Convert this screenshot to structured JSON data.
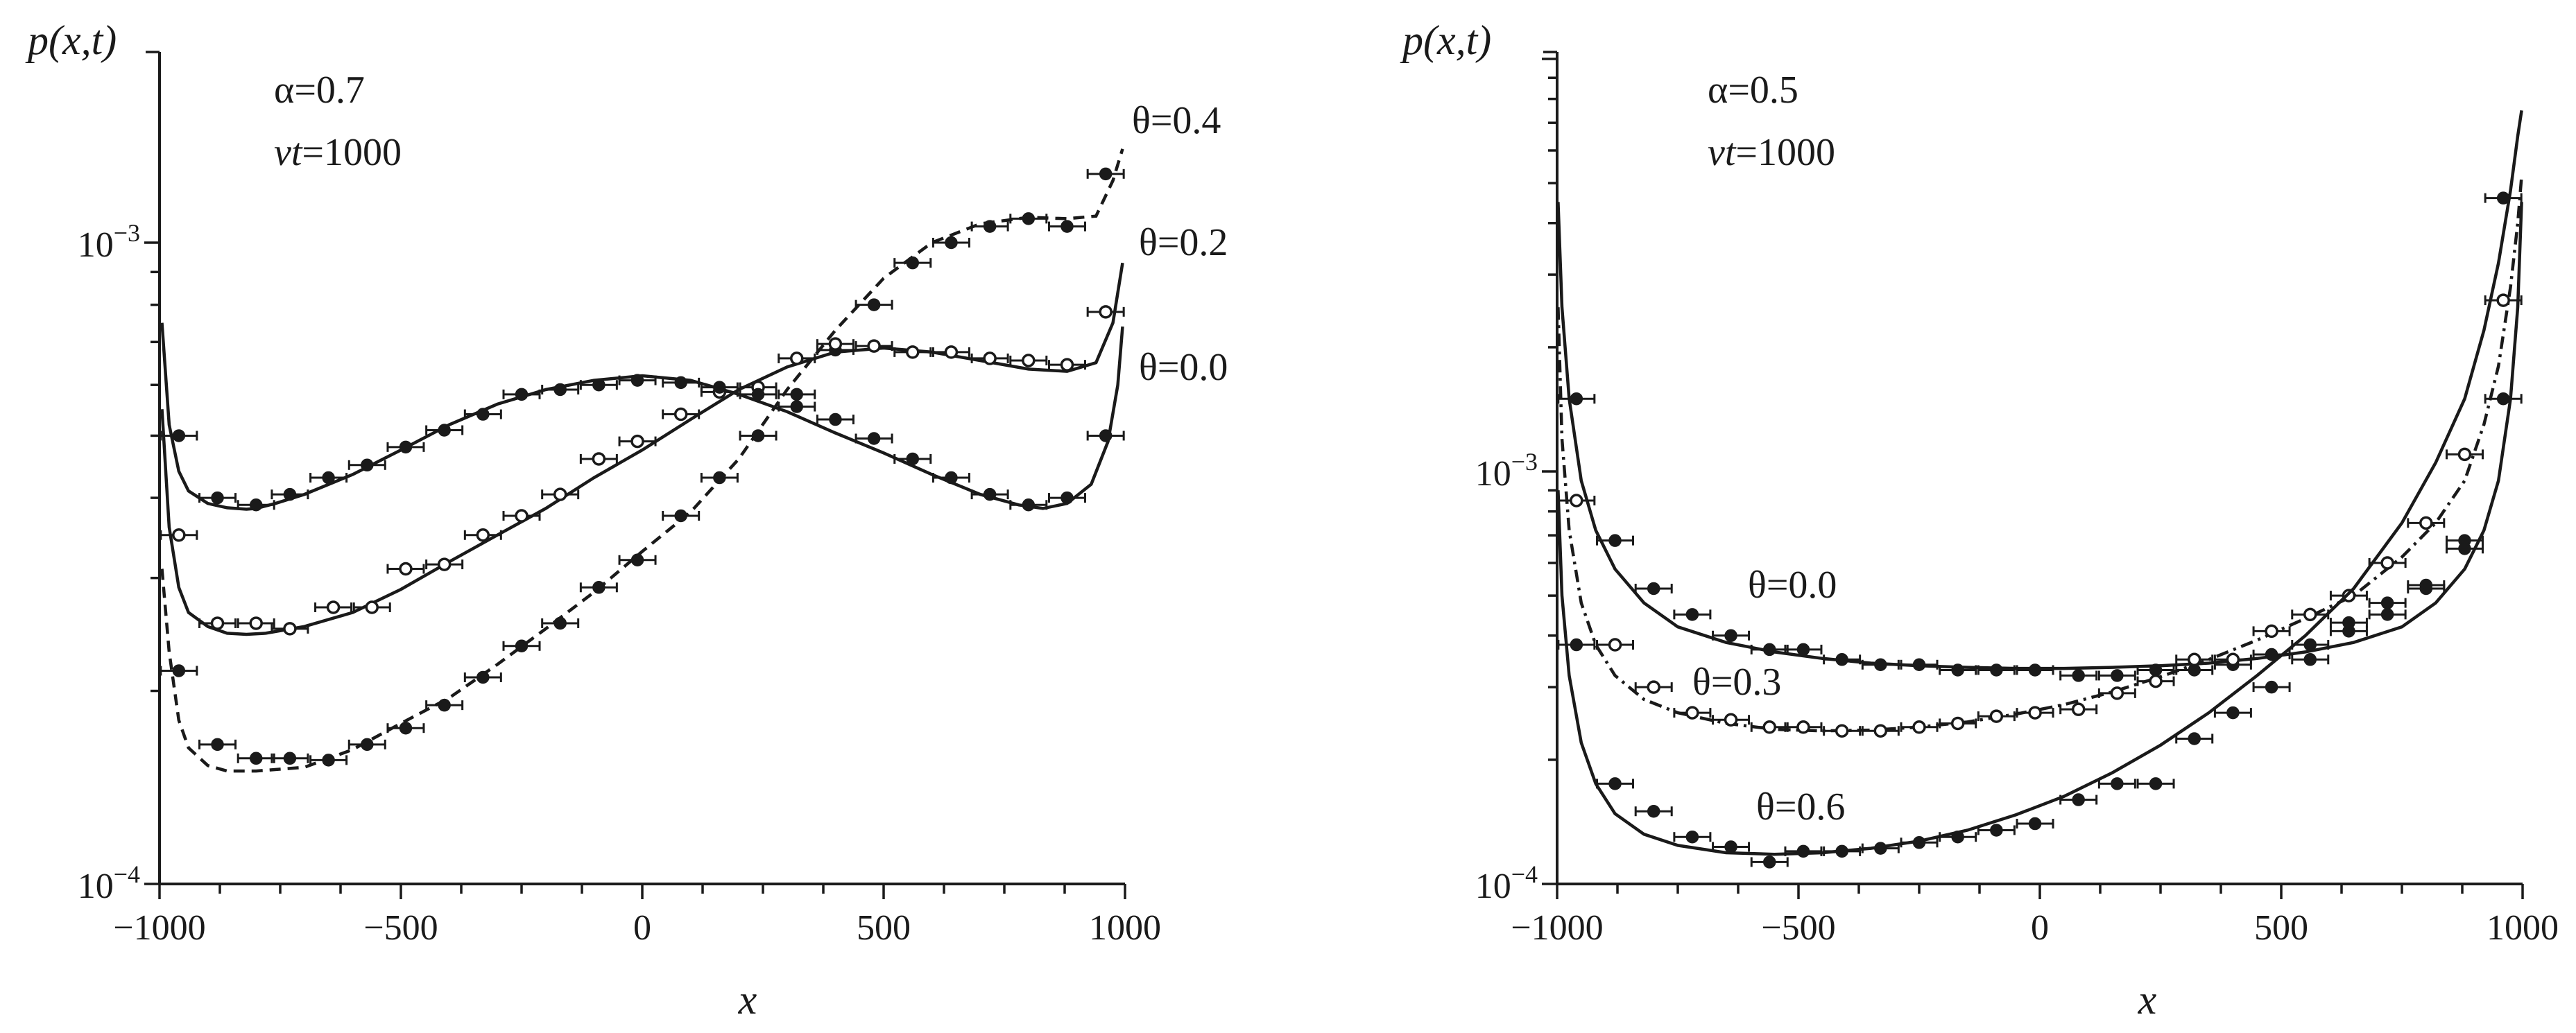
{
  "chart_data": [
    {
      "type": "line",
      "ylabel": "p(x,t)",
      "xlabel": "x",
      "yscale": "log",
      "xlim": [
        -1000,
        1000
      ],
      "ylim": [
        0.0001,
        0.002
      ],
      "xticks": [
        -1000,
        -500,
        0,
        500,
        1000
      ],
      "xtick_labels": [
        "−1000",
        "−500",
        "0",
        "500",
        "1000"
      ],
      "yticks": [
        {
          "value": 0.001,
          "base": "10",
          "exp": "−3"
        },
        {
          "value": 0.0001,
          "base": "10",
          "exp": "−4"
        }
      ],
      "param_alpha": "α=0.7",
      "param_vt_prefix": "v",
      "param_vt_middle": "t",
      "param_vt_value": "=1000",
      "series": [
        {
          "name": "θ=0.4",
          "style": "dashed",
          "curve_x": [
            -995,
            -980,
            -960,
            -940,
            -900,
            -860,
            -800,
            -700,
            -600,
            -500,
            -400,
            -300,
            -200,
            -100,
            0,
            100,
            200,
            300,
            400,
            500,
            600,
            700,
            800,
            880,
            940,
            975,
            995
          ],
          "curve_y": [
            0.00031,
            0.00023,
            0.00018,
            0.000163,
            0.000153,
            0.00015,
            0.00015,
            0.000152,
            0.000162,
            0.000178,
            0.000195,
            0.00022,
            0.00025,
            0.000285,
            0.00033,
            0.00038,
            0.00046,
            0.00059,
            0.00073,
            0.00088,
            0.001,
            0.00107,
            0.001095,
            0.00109,
            0.0011,
            0.00125,
            0.0014
          ],
          "points_x": [
            -960,
            -880,
            -800,
            -730,
            -650,
            -570,
            -490,
            -410,
            -330,
            -250,
            -170,
            -90,
            -10,
            80,
            160,
            240,
            320,
            400,
            480,
            560,
            640,
            720,
            800,
            880,
            960
          ],
          "points_y": [
            0.000215,
            0.000165,
            0.000157,
            0.000157,
            0.000156,
            0.000165,
            0.000175,
            0.00019,
            0.00021,
            0.000235,
            0.000255,
            0.00029,
            0.00032,
            0.000375,
            0.00043,
            0.0005,
            0.00058,
            0.00068,
            0.0008,
            0.00093,
            0.001,
            0.00106,
            0.00109,
            0.00106,
            0.00128
          ]
        },
        {
          "name": "θ=0.2",
          "style": "solid",
          "curve_x": [
            -995,
            -980,
            -960,
            -940,
            -900,
            -860,
            -820,
            -780,
            -700,
            -600,
            -500,
            -400,
            -300,
            -200,
            -100,
            0,
            100,
            200,
            300,
            400,
            500,
            600,
            700,
            800,
            880,
            940,
            975,
            995
          ],
          "curve_y": [
            0.00055,
            0.00036,
            0.00029,
            0.000265,
            0.000252,
            0.000246,
            0.000245,
            0.000246,
            0.000252,
            0.000265,
            0.000288,
            0.000318,
            0.00035,
            0.000385,
            0.00043,
            0.000475,
            0.00053,
            0.00059,
            0.00064,
            0.000675,
            0.000685,
            0.000675,
            0.000655,
            0.000635,
            0.00063,
            0.00065,
            0.00075,
            0.00093
          ],
          "points_x": [
            -960,
            -880,
            -800,
            -730,
            -640,
            -560,
            -490,
            -410,
            -330,
            -250,
            -170,
            -90,
            -10,
            80,
            160,
            240,
            320,
            400,
            480,
            560,
            640,
            720,
            800,
            880,
            960
          ],
          "points_y": [
            0.00035,
            0.000255,
            0.000255,
            0.00025,
            0.00027,
            0.00027,
            0.00031,
            0.000315,
            0.00035,
            0.000375,
            0.000405,
            0.00046,
            0.00049,
            0.00054,
            0.000585,
            0.000595,
            0.00066,
            0.000695,
            0.00069,
            0.000675,
            0.000675,
            0.00066,
            0.000655,
            0.000645,
            0.00078
          ]
        },
        {
          "name": "θ=0.0",
          "style": "solid",
          "curve_x": [
            -995,
            -980,
            -960,
            -940,
            -900,
            -860,
            -820,
            -800,
            -760,
            -700,
            -600,
            -500,
            -400,
            -300,
            -200,
            -100,
            0,
            100,
            200,
            300,
            400,
            500,
            600,
            700,
            780,
            830,
            880,
            930,
            965,
            985,
            995
          ],
          "curve_y": [
            0.00075,
            0.00052,
            0.00044,
            0.00041,
            0.000392,
            0.000386,
            0.000384,
            0.000385,
            0.000392,
            0.000405,
            0.000435,
            0.000475,
            0.00052,
            0.00056,
            0.00059,
            0.00061,
            0.00062,
            0.00061,
            0.00058,
            0.000545,
            0.000505,
            0.00047,
            0.000435,
            0.000405,
            0.00039,
            0.000385,
            0.000392,
            0.00042,
            0.00049,
            0.0006,
            0.00074
          ],
          "points_x": [
            -960,
            -880,
            -800,
            -730,
            -650,
            -570,
            -490,
            -410,
            -330,
            -250,
            -170,
            -90,
            -10,
            80,
            160,
            240,
            320,
            400,
            480,
            560,
            640,
            720,
            800,
            880,
            960
          ],
          "points_y": [
            0.0005,
            0.0004,
            0.00039,
            0.000405,
            0.00043,
            0.00045,
            0.00048,
            0.00051,
            0.00054,
            0.00058,
            0.00059,
            0.0006,
            0.00061,
            0.000605,
            0.000595,
            0.00058,
            0.000555,
            0.00053,
            0.000495,
            0.00046,
            0.00043,
            0.000405,
            0.00039,
            0.0004,
            0.0005
          ]
        }
      ]
    },
    {
      "type": "line",
      "ylabel": "p(x,t)",
      "xlabel": "x",
      "yscale": "log",
      "xlim": [
        -1000,
        1000
      ],
      "ylim": [
        0.0001,
        0.008
      ],
      "xticks": [
        -1000,
        -500,
        0,
        500,
        1000
      ],
      "xtick_labels": [
        "−1000",
        "−500",
        "0",
        "500",
        "1000"
      ],
      "yticks": [
        {
          "value": 0.001,
          "base": "10",
          "exp": "−3"
        },
        {
          "value": 0.0001,
          "base": "10",
          "exp": "−4"
        }
      ],
      "param_alpha": "α=0.5",
      "param_vt_prefix": "v",
      "param_vt_middle": "t",
      "param_vt_value": "=1000",
      "series": [
        {
          "name": "θ=0.0",
          "style": "solid",
          "curve_x": [
            -998,
            -990,
            -975,
            -950,
            -920,
            -880,
            -820,
            -750,
            -650,
            -550,
            -450,
            -350,
            -250,
            -150,
            -50,
            0,
            50,
            150,
            250,
            350,
            450,
            550,
            650,
            750,
            820,
            880,
            920,
            950,
            975,
            990,
            998
          ],
          "curve_y": [
            0.0045,
            0.0025,
            0.0015,
            0.00095,
            0.00072,
            0.00058,
            0.00048,
            0.00042,
            0.000385,
            0.000365,
            0.000352,
            0.000343,
            0.000338,
            0.000335,
            0.000333,
            0.000333,
            0.000333,
            0.000335,
            0.000338,
            0.000343,
            0.000352,
            0.000365,
            0.000385,
            0.00042,
            0.00048,
            0.00058,
            0.00072,
            0.00095,
            0.0015,
            0.0025,
            0.0045
          ],
          "points_x": [
            -960,
            -880,
            -800,
            -720,
            -640,
            -560,
            -490,
            -410,
            -330,
            -250,
            -170,
            -90,
            -10,
            80,
            160,
            240,
            320,
            400,
            480,
            560,
            640,
            720,
            800,
            880,
            960
          ],
          "points_y": [
            0.0015,
            0.00068,
            0.00052,
            0.00045,
            0.0004,
            0.00037,
            0.00037,
            0.00035,
            0.00034,
            0.00034,
            0.00033,
            0.00033,
            0.00033,
            0.00032,
            0.00032,
            0.00033,
            0.00033,
            0.00034,
            0.00036,
            0.00038,
            0.00041,
            0.00045,
            0.00052,
            0.00068,
            0.0015
          ]
        },
        {
          "name": "θ=0.3",
          "style": "dashdot",
          "curve_x": [
            -998,
            -990,
            -975,
            -950,
            -920,
            -880,
            -820,
            -750,
            -650,
            -550,
            -450,
            -350,
            -250,
            -150,
            -50,
            50,
            150,
            250,
            350,
            450,
            550,
            650,
            750,
            820,
            880,
            920,
            950,
            975,
            990,
            998
          ],
          "curve_y": [
            0.0025,
            0.0012,
            0.00072,
            0.00048,
            0.00038,
            0.00032,
            0.00028,
            0.00026,
            0.000245,
            0.000237,
            0.000235,
            0.000236,
            0.00024,
            0.000247,
            0.000258,
            0.000272,
            0.000292,
            0.000318,
            0.00035,
            0.00039,
            0.00044,
            0.0005,
            0.00062,
            0.00075,
            0.00095,
            0.0013,
            0.0018,
            0.0028,
            0.004,
            0.0052
          ],
          "points_x": [
            -960,
            -880,
            -800,
            -720,
            -640,
            -560,
            -490,
            -410,
            -330,
            -250,
            -170,
            -90,
            -10,
            80,
            160,
            240,
            320,
            400,
            480,
            560,
            640,
            720,
            800,
            880,
            960
          ],
          "points_y": [
            0.00085,
            0.00038,
            0.0003,
            0.00026,
            0.00025,
            0.00024,
            0.00024,
            0.000235,
            0.000235,
            0.00024,
            0.000245,
            0.000255,
            0.00026,
            0.000265,
            0.00029,
            0.00031,
            0.00035,
            0.00035,
            0.00041,
            0.00045,
            0.0005,
            0.0006,
            0.00075,
            0.0011,
            0.0026
          ]
        },
        {
          "name": "θ=0.6",
          "style": "solid",
          "curve_x": [
            -998,
            -990,
            -975,
            -950,
            -920,
            -880,
            -820,
            -750,
            -650,
            -550,
            -450,
            -350,
            -250,
            -150,
            -50,
            50,
            150,
            250,
            350,
            450,
            550,
            650,
            750,
            820,
            880,
            920,
            950,
            975,
            990,
            998
          ],
          "curve_y": [
            0.0009,
            0.0005,
            0.00032,
            0.00022,
            0.000175,
            0.000148,
            0.000132,
            0.000124,
            0.000119,
            0.000118,
            0.000119,
            0.000122,
            0.000127,
            0.000135,
            0.000147,
            0.000163,
            0.000186,
            0.000217,
            0.00026,
            0.00032,
            0.0004,
            0.00052,
            0.00075,
            0.00105,
            0.0015,
            0.0022,
            0.0032,
            0.0048,
            0.0065,
            0.0075
          ],
          "points_x": [
            -960,
            -880,
            -800,
            -720,
            -640,
            -560,
            -490,
            -410,
            -330,
            -250,
            -170,
            -90,
            -10,
            80,
            160,
            240,
            320,
            400,
            480,
            560,
            640,
            720,
            800,
            880,
            960
          ],
          "points_y": [
            0.00038,
            0.000175,
            0.00015,
            0.00013,
            0.000123,
            0.000113,
            0.00012,
            0.00012,
            0.000122,
            0.000126,
            0.00013,
            0.000135,
            0.00014,
            0.00016,
            0.000175,
            0.000175,
            0.000225,
            0.00026,
            0.0003,
            0.00035,
            0.00043,
            0.00048,
            0.00053,
            0.00065,
            0.0046
          ]
        }
      ]
    }
  ]
}
